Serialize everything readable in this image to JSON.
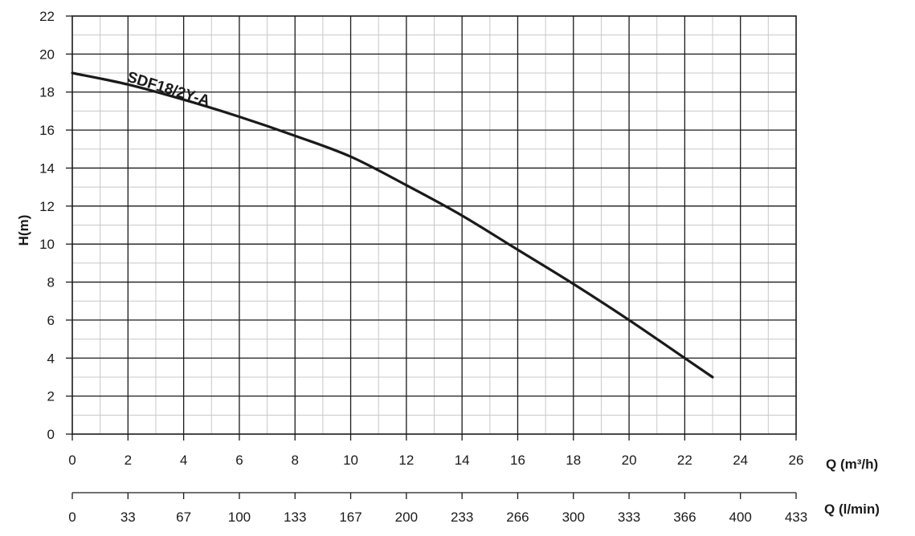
{
  "chart_data": {
    "type": "line",
    "title": "",
    "xlabel": "Q (m³/h)",
    "xlabel_secondary": "Q (l/min)",
    "ylabel": "H(m)",
    "xlim": [
      0,
      26
    ],
    "ylim": [
      0,
      22
    ],
    "x_ticks": [
      0,
      2,
      4,
      6,
      8,
      10,
      12,
      14,
      16,
      18,
      20,
      22,
      24,
      26
    ],
    "y_ticks": [
      0,
      2,
      4,
      6,
      8,
      10,
      12,
      14,
      16,
      18,
      20,
      22
    ],
    "x_secondary_ticks": [
      0,
      33,
      67,
      100,
      133,
      167,
      200,
      233,
      266,
      300,
      333,
      366,
      400,
      433
    ],
    "grid": true,
    "minor_grid": true,
    "legend": "none",
    "series": [
      {
        "name": "SDF18/2Y-A",
        "x": [
          0,
          2,
          4,
          6,
          8,
          10,
          12,
          14,
          16,
          18,
          20,
          22,
          23
        ],
        "y": [
          19.0,
          18.4,
          17.6,
          16.7,
          15.7,
          14.6,
          13.1,
          11.5,
          9.7,
          7.9,
          6.0,
          4.0,
          3.0
        ]
      }
    ],
    "colors": {
      "line": "#1a1a1a",
      "major_grid": "#1a1a1a",
      "minor_grid": "#c8c8c8"
    }
  }
}
